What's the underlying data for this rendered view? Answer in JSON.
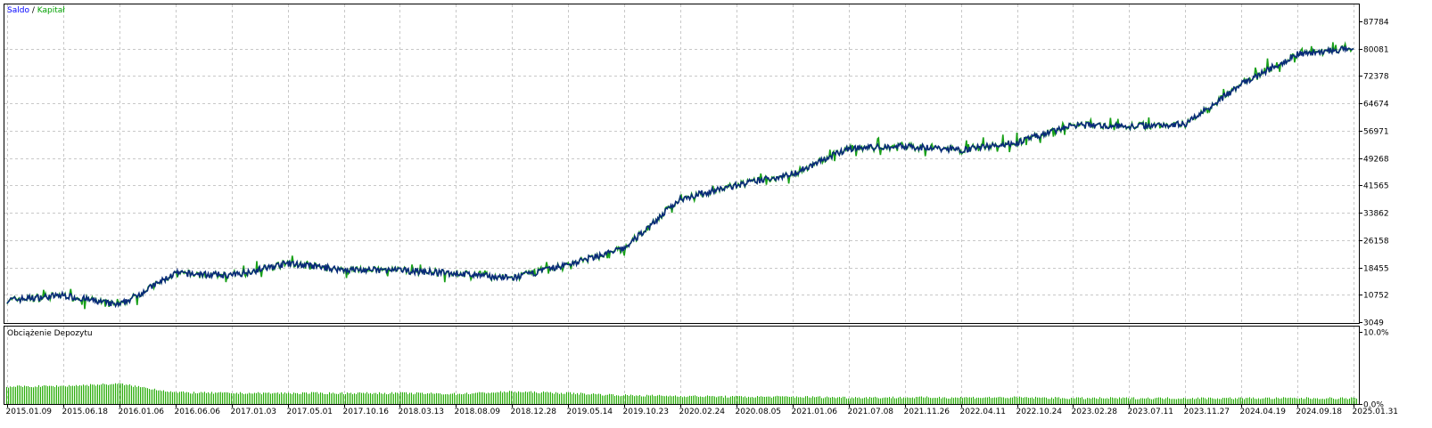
{
  "legend": {
    "balance_label": "Saldo",
    "separator": "/",
    "equity_label": "Kapitał",
    "balance_color": "#0000ff",
    "equity_color": "#00a000"
  },
  "chart_data": [
    {
      "type": "line",
      "title": "",
      "xlabel": "",
      "ylabel": "",
      "ylim": [
        3049,
        87784
      ],
      "y_ticks": [
        "87784",
        "80081",
        "72378",
        "64674",
        "56971",
        "49268",
        "41565",
        "33862",
        "26158",
        "18455",
        "10752",
        "3049"
      ],
      "grid": true,
      "legend_position": "top-left",
      "colors": {
        "balance": "#0a2a7a",
        "equity": "#18a018"
      },
      "series": [
        {
          "name": "Saldo",
          "x": [
            "2015.01.09",
            "2015.06.18",
            "2016.01.06",
            "2016.06.06",
            "2017.01.03",
            "2017.05.01",
            "2017.10.16",
            "2018.03.13",
            "2018.08.09",
            "2018.12.28",
            "2019.05.14",
            "2019.10.23",
            "2020.02.24",
            "2020.08.05",
            "2021.01.06",
            "2021.07.08",
            "2021.11.26",
            "2022.04.11",
            "2022.10.24",
            "2023.02.28",
            "2023.07.11",
            "2023.11.27",
            "2024.04.19",
            "2024.09.18",
            "2025.01.31"
          ],
          "values": [
            9200,
            10600,
            7800,
            16800,
            16200,
            19600,
            17800,
            17600,
            16800,
            15400,
            19300,
            23800,
            37800,
            41600,
            44800,
            52000,
            52600,
            51600,
            53600,
            58600,
            58200,
            58900,
            70000,
            78600,
            80081
          ]
        }
      ]
    },
    {
      "type": "bar",
      "title": "Obciążenie Depozytu",
      "ylim": [
        0,
        10
      ],
      "y_ticks": [
        "10.0%",
        "0.0%"
      ],
      "x_tick_labels": [
        "2015.01.09",
        "2015.06.18",
        "2016.01.06",
        "2016.06.06",
        "2017.01.03",
        "2017.05.01",
        "2017.10.16",
        "2018.03.13",
        "2018.08.09",
        "2018.12.28",
        "2019.05.14",
        "2019.10.23",
        "2020.02.24",
        "2020.08.05",
        "2021.01.06",
        "2021.07.08",
        "2021.11.26",
        "2022.04.11",
        "2022.10.24",
        "2023.02.28",
        "2023.07.11",
        "2023.11.27",
        "2024.04.19",
        "2024.09.18",
        "2025.01.31"
      ],
      "values": [
        2.4,
        2.5,
        2.8,
        1.6,
        1.5,
        1.5,
        1.5,
        1.5,
        1.4,
        1.7,
        1.5,
        1.2,
        1.1,
        1.0,
        1.0,
        0.9,
        0.9,
        0.9,
        0.9,
        0.8,
        0.8,
        0.8,
        0.8,
        0.8,
        0.8
      ],
      "color": "#22aa00"
    }
  ]
}
